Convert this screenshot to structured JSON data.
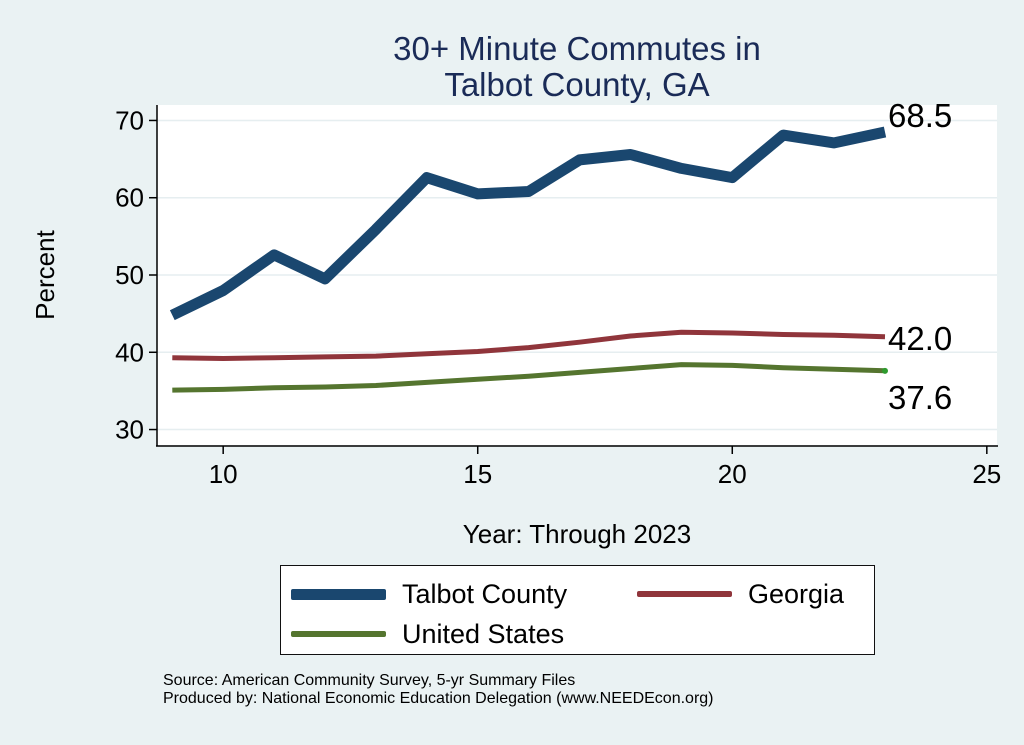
{
  "chart_data": {
    "type": "line",
    "title": [
      "30+ Minute Commutes in",
      "Talbot County, GA"
    ],
    "xlabel": "Year: Through 2023",
    "ylabel": "Percent",
    "xlim": [
      8.7,
      25.2
    ],
    "ylim": [
      28.0,
      72.0
    ],
    "xticks": [
      10,
      15,
      20,
      25
    ],
    "yticks": [
      30,
      40,
      50,
      60,
      70
    ],
    "grid": true,
    "legend_position": "bottom",
    "x": [
      9,
      10,
      11,
      12,
      13,
      14,
      15,
      16,
      17,
      18,
      19,
      20,
      21,
      22,
      23
    ],
    "series": [
      {
        "name": "Talbot County",
        "color": "#1a476f",
        "weight": "thick",
        "values": [
          44.8,
          48.0,
          52.6,
          49.5,
          55.9,
          62.6,
          60.5,
          60.8,
          64.9,
          65.6,
          63.8,
          62.6,
          68.1,
          67.1,
          68.5
        ],
        "end_label": "68.5"
      },
      {
        "name": "Georgia",
        "color": "#90353b",
        "weight": "medium",
        "values": [
          39.3,
          39.2,
          39.3,
          39.4,
          39.5,
          39.8,
          40.1,
          40.6,
          41.3,
          42.1,
          42.6,
          42.5,
          42.3,
          42.2,
          42.0
        ],
        "end_label": "42.0"
      },
      {
        "name": "United States",
        "color": "#55752f",
        "weight": "medium",
        "values": [
          35.1,
          35.2,
          35.4,
          35.5,
          35.7,
          36.1,
          36.5,
          36.9,
          37.4,
          37.9,
          38.4,
          38.3,
          38.0,
          37.8,
          37.6
        ],
        "end_label": "37.6"
      }
    ],
    "source": [
      "Source: American Community Survey, 5-yr Summary Files",
      "Produced by: National Economic Education Delegation (www.NEEDEcon.org)"
    ]
  }
}
